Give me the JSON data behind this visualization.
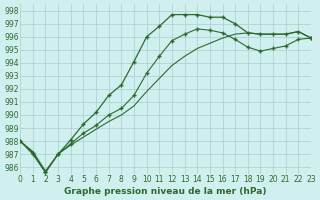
{
  "line1_x": [
    0,
    1,
    2,
    3,
    4,
    5,
    6,
    7,
    8,
    9,
    10,
    11,
    12,
    13,
    14,
    15,
    16,
    17,
    18,
    19,
    20,
    21,
    22,
    23
  ],
  "line1_y": [
    988.0,
    987.0,
    985.6,
    987.0,
    988.1,
    989.3,
    990.2,
    991.5,
    992.3,
    994.1,
    996.0,
    996.8,
    997.7,
    997.7,
    997.7,
    997.5,
    997.5,
    997.0,
    996.3,
    996.2,
    996.2,
    996.2,
    996.4,
    995.9
  ],
  "line2_x": [
    0,
    1,
    2,
    3,
    4,
    5,
    6,
    7,
    8,
    9,
    10,
    11,
    12,
    13,
    14,
    15,
    16,
    17,
    18,
    19,
    20,
    21,
    22,
    23
  ],
  "line2_y": [
    988.0,
    987.2,
    985.7,
    987.0,
    987.7,
    988.3,
    988.9,
    989.5,
    990.0,
    990.7,
    991.8,
    992.8,
    993.8,
    994.5,
    995.1,
    995.5,
    995.9,
    996.2,
    996.3,
    996.2,
    996.2,
    996.2,
    996.4,
    995.9
  ],
  "line3_x": [
    0,
    1,
    2,
    3,
    4,
    5,
    6,
    7,
    8,
    9,
    10,
    11,
    12,
    13,
    14,
    15,
    16,
    17,
    18,
    19,
    20,
    21,
    22,
    23
  ],
  "line3_y": [
    988.0,
    987.1,
    985.6,
    987.0,
    987.8,
    988.6,
    989.2,
    990.0,
    990.5,
    991.5,
    993.2,
    994.5,
    995.7,
    996.2,
    996.6,
    996.5,
    996.3,
    995.8,
    995.2,
    994.9,
    995.1,
    995.3,
    995.8,
    995.9
  ],
  "line_color": "#2d6a2d",
  "bg_color": "#d0f0f0",
  "grid_color": "#a8cece",
  "xlabel": "Graphe pression niveau de la mer (hPa)",
  "ylim": [
    985.5,
    998.5
  ],
  "xlim": [
    0,
    23
  ],
  "yticks": [
    986,
    987,
    988,
    989,
    990,
    991,
    992,
    993,
    994,
    995,
    996,
    997,
    998
  ],
  "xticks": [
    0,
    1,
    2,
    3,
    4,
    5,
    6,
    7,
    8,
    9,
    10,
    11,
    12,
    13,
    14,
    15,
    16,
    17,
    18,
    19,
    20,
    21,
    22,
    23
  ]
}
